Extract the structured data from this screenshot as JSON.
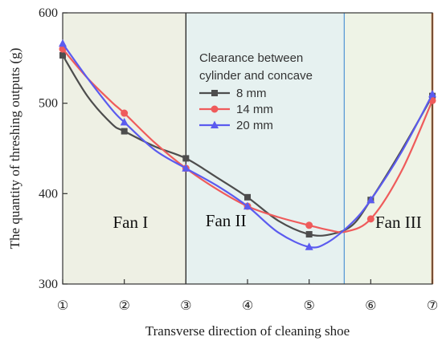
{
  "chart_data": {
    "type": "line",
    "xlabel": "Transverse direction of cleaning shoe",
    "ylabel": "The quantity of threshing outputs (g)",
    "x_categories": [
      "①",
      "②",
      "③",
      "④",
      "⑤",
      "⑥",
      "⑦"
    ],
    "xlim": [
      1,
      7
    ],
    "ylim": [
      300,
      600
    ],
    "y_ticks": [
      300,
      400,
      500,
      600
    ],
    "legend": {
      "title_lines": [
        "Clearance between",
        "cylinder  and concave"
      ],
      "placement": "top-right"
    },
    "series": [
      {
        "name": "8  mm",
        "color": "#4d4d4d",
        "marker": "square",
        "values": [
          553,
          469,
          439,
          396,
          355,
          393,
          508
        ],
        "curve_points": [
          [
            1,
            553
          ],
          [
            1.4,
            508
          ],
          [
            1.8,
            477
          ],
          [
            2,
            469
          ],
          [
            2.5,
            452
          ],
          [
            3,
            439
          ],
          [
            3.5,
            418
          ],
          [
            4,
            396
          ],
          [
            4.5,
            370
          ],
          [
            5,
            355
          ],
          [
            5.35,
            355
          ],
          [
            5.7,
            365
          ],
          [
            6,
            393
          ],
          [
            6.5,
            448
          ],
          [
            7,
            508
          ]
        ]
      },
      {
        "name": "14 mm",
        "color": "#ef5b5b",
        "marker": "circle",
        "values": [
          560,
          489,
          428,
          386,
          365,
          372,
          503
        ],
        "curve_points": [
          [
            1,
            560
          ],
          [
            1.4,
            528
          ],
          [
            1.8,
            501
          ],
          [
            2,
            489
          ],
          [
            2.5,
            456
          ],
          [
            3,
            428
          ],
          [
            3.5,
            405
          ],
          [
            4,
            386
          ],
          [
            4.5,
            374
          ],
          [
            5,
            365
          ],
          [
            5.3,
            360
          ],
          [
            5.6,
            358
          ],
          [
            6,
            372
          ],
          [
            6.5,
            425
          ],
          [
            7,
            503
          ]
        ]
      },
      {
        "name": "20 mm",
        "color": "#5b5bef",
        "marker": "triangle",
        "values": [
          566,
          479,
          428,
          386,
          341,
          393,
          510
        ],
        "curve_points": [
          [
            1,
            566
          ],
          [
            1.4,
            528
          ],
          [
            1.8,
            493
          ],
          [
            2,
            479
          ],
          [
            2.5,
            448
          ],
          [
            3,
            428
          ],
          [
            3.5,
            409
          ],
          [
            4,
            386
          ],
          [
            4.5,
            357
          ],
          [
            5,
            341
          ],
          [
            5.3,
            346
          ],
          [
            5.7,
            368
          ],
          [
            6,
            393
          ],
          [
            6.5,
            446
          ],
          [
            7,
            510
          ]
        ]
      }
    ],
    "regions": [
      {
        "label": "Fan I",
        "x_range": [
          1,
          3
        ],
        "fill": "#eef0e4",
        "label_pos": [
          2.1,
          362
        ]
      },
      {
        "label": "Fan II",
        "x_range": [
          3,
          5.57
        ],
        "fill": "#e6f1f0",
        "label_pos": [
          3.65,
          364
        ]
      },
      {
        "label": "Fan III",
        "x_range": [
          5.57,
          7
        ],
        "fill": "#eef3e6",
        "label_pos": [
          6.45,
          362
        ]
      }
    ],
    "region_boundaries": [
      {
        "x": 3,
        "color": "#222222"
      },
      {
        "x": 5.57,
        "color": "#5b9bd5"
      },
      {
        "x": 7,
        "color": "#e07b39"
      }
    ]
  }
}
